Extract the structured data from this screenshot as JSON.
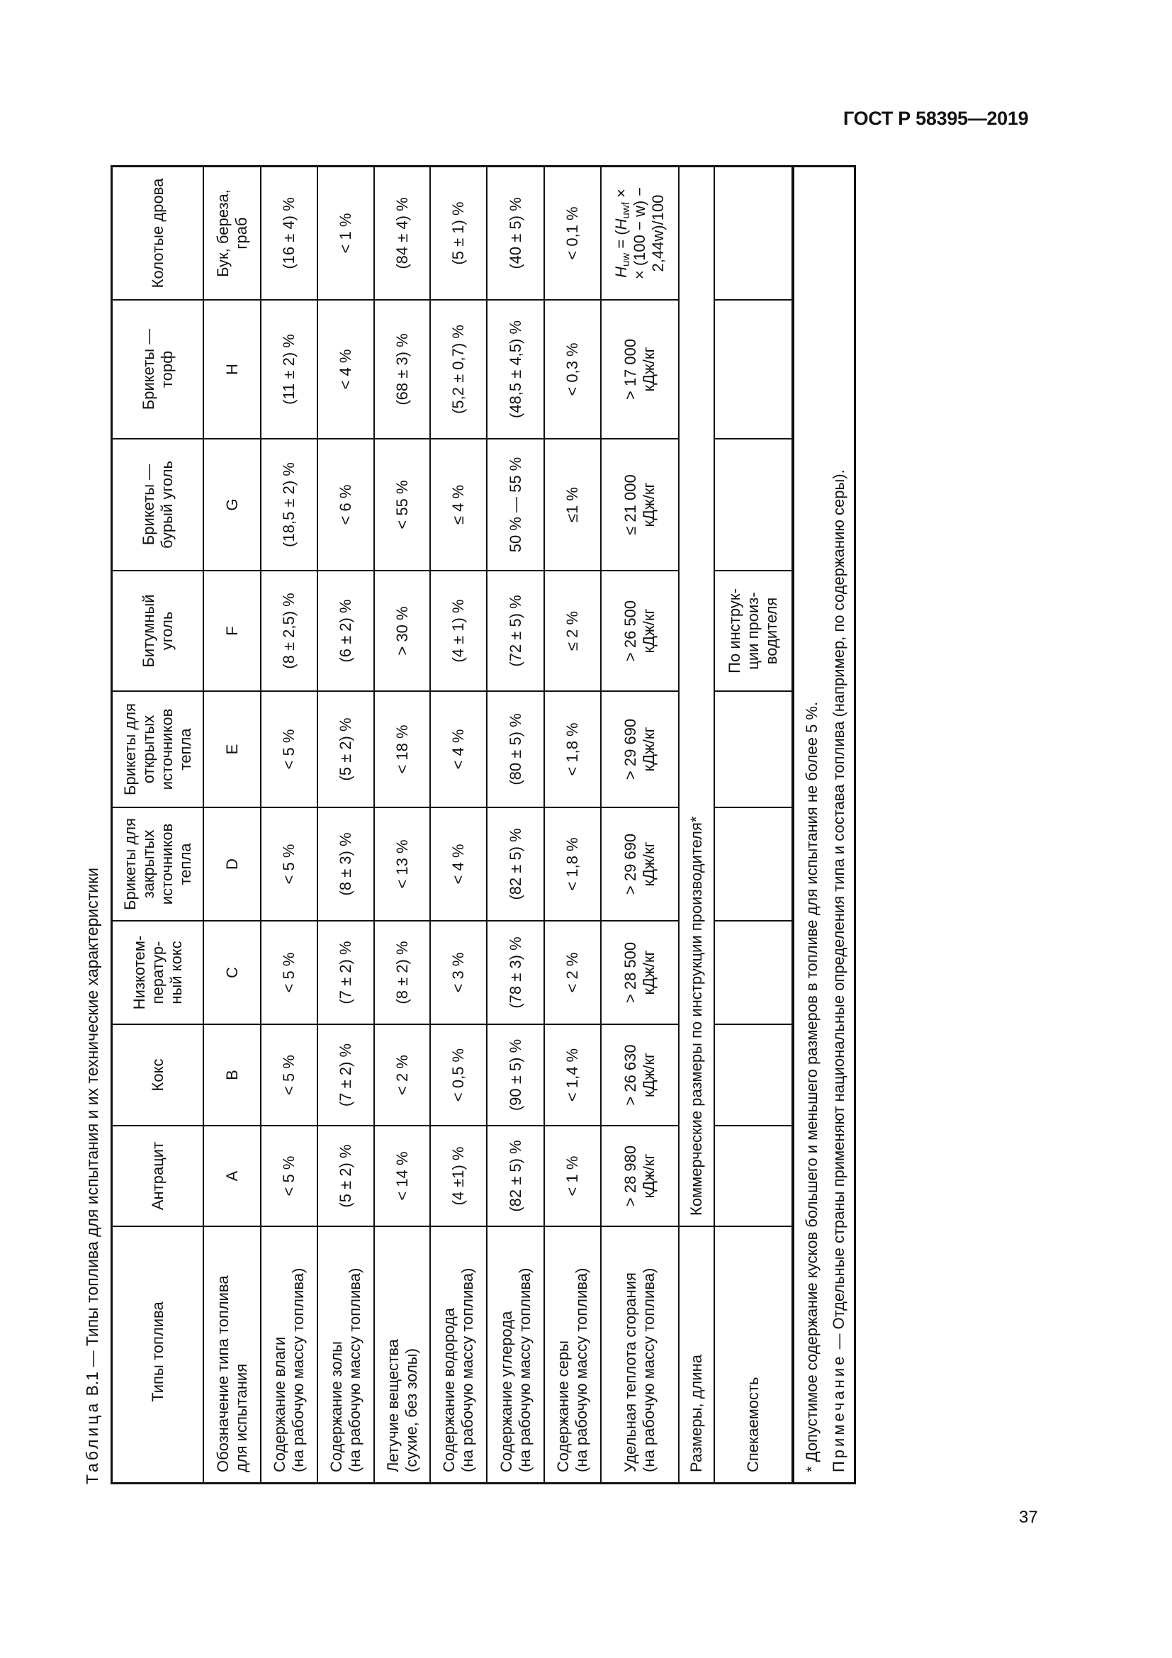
{
  "header": {
    "doc_id": "ГОСТ Р 58395—2019"
  },
  "page_number": "37",
  "caption": {
    "label": "Таблица",
    "text": " В.1 — Типы топлива для испытания и их технические характеристики"
  },
  "table": {
    "columns": [
      "Типы топлива",
      "Антрацит",
      "Кокс",
      "Низкотем-\nператур-\nный кокс",
      "Брикеты для\nзакрытых\nисточников\nтепла",
      "Брикеты для\nоткрытых\nисточников\nтепла",
      "Битумный\nуголь",
      "Брикеты —\nбурый уголь",
      "Брикеты —\nторф",
      "Колотые дрова"
    ],
    "rows": [
      {
        "label": "Обозначение типа топлива\nдля испытания",
        "values": [
          "A",
          "B",
          "C",
          "D",
          "E",
          "F",
          "G",
          "H",
          "Бук, береза,\nграб"
        ]
      },
      {
        "label": "Содержание влаги\n(на рабочую массу топлива)",
        "values": [
          "< 5 %",
          "< 5 %",
          "< 5 %",
          "< 5 %",
          "< 5 %",
          "(8 ± 2,5) %",
          "(18,5 ± 2) %",
          "(11 ± 2) %",
          "(16 ± 4) %"
        ]
      },
      {
        "label": "Содержание золы\n(на рабочую массу топлива)",
        "values": [
          "(5 ± 2) %",
          "(7 ± 2) %",
          "(7 ± 2) %",
          "(8 ± 3) %",
          "(5 ± 2) %",
          "(6 ± 2) %",
          "< 6 %",
          "< 4 %",
          "< 1 %"
        ]
      },
      {
        "label": "Летучие вещества\n(сухие, без золы)",
        "values": [
          "< 14 %",
          "< 2 %",
          "(8 ± 2) %",
          "< 13 %",
          "< 18 %",
          "> 30 %",
          "< 55 %",
          "(68 ± 3) %",
          "(84 ± 4) %"
        ]
      },
      {
        "label": "Содержание водорода\n(на рабочую массу топлива)",
        "values": [
          "(4 ±1) %",
          "< 0,5 %",
          "< 3 %",
          "< 4 %",
          "< 4 %",
          "(4 ± 1) %",
          "≤ 4 %",
          "(5,2 ± 0,7) %",
          "(5 ± 1) %"
        ]
      },
      {
        "label": "Содержание углерода\n(на рабочую массу топлива)",
        "values": [
          "(82 ± 5) %",
          "(90 ± 5) %",
          "(78 ± 3) %",
          "(82 ± 5) %",
          "(80 ± 5) %",
          "(72 ± 5) %",
          "50 % — 55 %",
          "(48,5 ± 4,5) %",
          "(40 ± 5) %"
        ]
      },
      {
        "label": "Содержание серы\n(на рабочую массу топлива)",
        "values": [
          "< 1 %",
          "< 1,4 %",
          "< 2 %",
          "< 1,8 %",
          "< 1,8 %",
          "≤ 2 %",
          "≤1 %",
          "< 0,3 %",
          "< 0,1 %"
        ]
      },
      {
        "label": "Удельная теплота сгорания\n(на рабочую массу топлива)",
        "values": [
          "> 28 980\nкДж/кг",
          "> 26 630\nкДж/кг",
          "> 28 500\nкДж/кг",
          "> 29 690\nкДж/кг",
          "> 29 690\nкДж/кг",
          "> 26 500\nкДж/кг",
          "≤ 21 000\nкДж/кг",
          "> 17 000\nкДж/кг",
          ""
        ]
      }
    ],
    "formula": {
      "h1": "H",
      "sub1": "uw",
      "eq": " = (",
      "h2": "H",
      "sub2": "uwf",
      "tail1": " ×",
      "line2": "× (100 − w) −",
      "line3": "2,44w)/100"
    },
    "sizes_row": {
      "label": "Размеры, длина",
      "value": "Коммерческие размеры по инструкции производителя*"
    },
    "caking_row": {
      "label": "Спекаемость",
      "values": [
        "",
        "",
        "",
        "",
        "",
        "По инструк-\nции произ-\nводителя",
        "",
        "",
        ""
      ]
    }
  },
  "notes": {
    "footnote": "* Допустимое содержание кусков большего и меньшего размеров в топливе для испытания не более 5 %.",
    "note_label": "Примечание",
    "note_text": " — Отдельные страны применяют национальные определения типа и состава топлива (например, по содержанию серы)."
  }
}
